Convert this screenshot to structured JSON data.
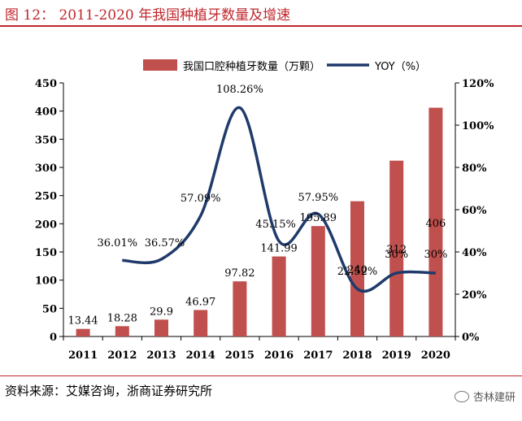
{
  "page": {
    "title": "图 12：  2011-2020 年我国种植牙数量及增速",
    "source": "资料来源：艾媒咨询，浙商证券研究所",
    "watermark": "杏林建研"
  },
  "colors": {
    "accent": "#c0282d",
    "bar": "#c0504d",
    "line": "#1f3a6b"
  },
  "chart_data": {
    "type": "bar+line",
    "title": "2011-2020 年我国种植牙数量及增速",
    "categories": [
      "2011",
      "2012",
      "2013",
      "2014",
      "2015",
      "2016",
      "2017",
      "2018",
      "2019",
      "2020"
    ],
    "series": [
      {
        "name": "我国口腔种植牙数量（万颗）",
        "type": "bar",
        "axis": "left",
        "values": [
          13.44,
          18.28,
          29.9,
          46.97,
          97.82,
          141.99,
          195.89,
          240,
          312,
          406
        ],
        "labels": [
          "13.44",
          "18.28",
          "29.9",
          "46.97",
          "97.82",
          "141.99",
          "195.89",
          "240",
          "312",
          "406"
        ]
      },
      {
        "name": "YOY（%）",
        "type": "line",
        "axis": "right",
        "values": [
          null,
          36.01,
          36.57,
          57.09,
          108.26,
          45.15,
          57.95,
          22.52,
          30,
          30
        ],
        "labels": [
          "",
          "36.01%",
          "36.57%",
          "57.09%",
          "108.26%",
          "45.15%",
          "57.95%",
          "22.52%",
          "30%",
          "30%"
        ]
      }
    ],
    "y_left": {
      "min": 0,
      "max": 450,
      "ticks": [
        "0",
        "50",
        "100",
        "150",
        "200",
        "250",
        "300",
        "350",
        "400",
        "450"
      ]
    },
    "y_right": {
      "min": 0,
      "max": 120,
      "ticks": [
        "0%",
        "20%",
        "40%",
        "60%",
        "80%",
        "100%",
        "120%"
      ]
    },
    "legend_position": "top"
  }
}
